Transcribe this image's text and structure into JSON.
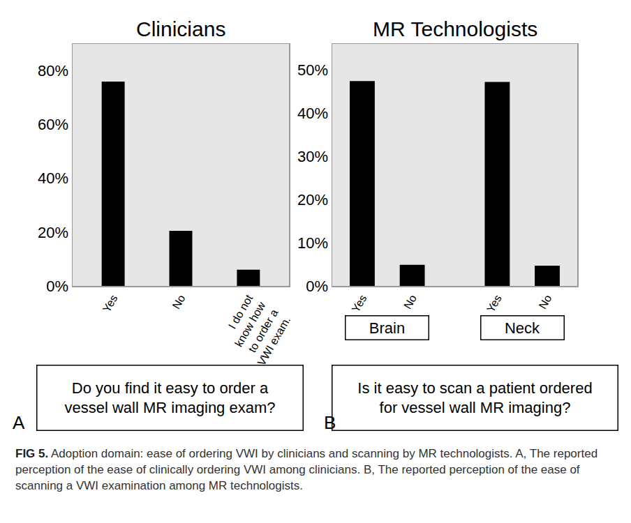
{
  "chart_data": [
    {
      "type": "bar",
      "panel": "A",
      "title": "Clinicians",
      "question": "Do you find it easy to order a vessel wall MR imaging exam?",
      "categories": [
        "Yes",
        "No",
        "I do not know how to order a VWI exam."
      ],
      "values": [
        76,
        20.5,
        6
      ],
      "color": "#000000",
      "ylim": [
        0,
        90
      ],
      "yticks": [
        {
          "value": 0,
          "label": "0%"
        },
        {
          "value": 20,
          "label": "20%"
        },
        {
          "value": 40,
          "label": "40%"
        },
        {
          "value": 60,
          "label": "60%"
        },
        {
          "value": 80,
          "label": "80%"
        }
      ],
      "grid": false
    },
    {
      "type": "bar",
      "panel": "B",
      "title": "MR Technologists",
      "question": "Is it easy to scan a patient ordered for vessel wall MR imaging?",
      "categories": [
        "Yes",
        "No",
        "Yes",
        "No"
      ],
      "groups": [
        "Brain",
        "Brain",
        "Neck",
        "Neck"
      ],
      "values": [
        47.4,
        4.9,
        47.2,
        4.7
      ],
      "color": "#000000",
      "ylim": [
        0,
        56
      ],
      "yticks": [
        {
          "value": 0,
          "label": "0%"
        },
        {
          "value": 10,
          "label": "10%"
        },
        {
          "value": 20,
          "label": "20%"
        },
        {
          "value": 30,
          "label": "30%"
        },
        {
          "value": 40,
          "label": "40%"
        },
        {
          "value": 50,
          "label": "50%"
        }
      ],
      "grid": false
    }
  ],
  "caption": {
    "label": "FIG 5.",
    "text": "Adoption domain: ease of ordering VWI by clinicians and scanning by MR technologists. A, The reported perception of the ease of clinically ordering VWI among clinicians. B, The reported perception of the ease of scanning a VWI examination among MR technologists."
  }
}
